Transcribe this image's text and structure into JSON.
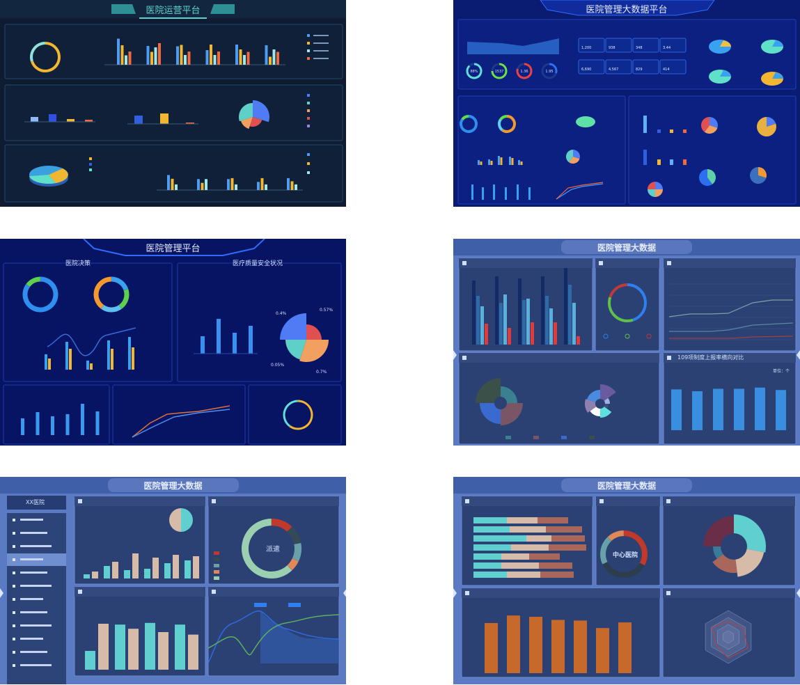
{
  "thumbnails": [
    {
      "title": "医院运营平台",
      "staff_bars": {
        "ymax": 800,
        "ticks": [
          "800",
          "600",
          "400",
          "200",
          "0"
        ],
        "groups": [
          [
            750,
            560,
            270,
            380
          ],
          [
            540,
            370,
            500,
            620
          ],
          [
            530,
            570,
            280,
            380
          ],
          [
            420,
            580,
            280,
            380
          ],
          [
            580,
            440,
            280,
            370
          ],
          [
            560,
            230,
            440,
            370
          ]
        ],
        "colors": [
          "#4f9cf5",
          "#f2b630",
          "#9fe8e6",
          "#f06a3c"
        ]
      },
      "ring_colors": [
        "#f2b630",
        "#8fe3de"
      ],
      "expense_bars": [
        7,
        11,
        4,
        3
      ],
      "income_bars": [
        12,
        15,
        2
      ],
      "pie_colors": [
        "#4f7cf5",
        "#5fd0c8",
        "#f2a060",
        "#e05050",
        "#a080e0"
      ],
      "drug_bars": {
        "ymax": 800,
        "groups": [
          [
            480,
            360,
            180
          ],
          [
            350,
            230,
            350
          ],
          [
            350,
            380,
            180
          ],
          [
            260,
            380,
            180
          ],
          [
            380,
            280,
            180
          ]
        ],
        "colors": [
          "#4f9cf5",
          "#f2b630",
          "#9fe8e6"
        ]
      }
    },
    {
      "title": "医院管理大数据平台",
      "gauges": [
        {
          "value": "88%",
          "color": "#5fe0d8",
          "fill": 0.88
        },
        {
          "value": "1537",
          "color": "#6ee04a",
          "fill": 0.75
        },
        {
          "value": "1.36",
          "color": "#f04040",
          "fill": 0.8
        },
        {
          "value": "1.95",
          "color": "#2e6ff0",
          "fill": 0.3
        }
      ],
      "kpis": [
        "1,200",
        "938",
        "348",
        "3.44",
        "6,690",
        "4,567",
        "829",
        "414"
      ]
    },
    {
      "title": "医院管理平台",
      "section_left": "医院决策",
      "section_right": "医疗质量安全状况",
      "visit_bars": {
        "blue": [
          22,
          40,
          13,
          42,
          47
        ],
        "yellow": [
          16,
          30,
          9,
          30,
          32
        ]
      },
      "quality_bars": [
        25,
        50,
        30,
        40
      ],
      "pie_labels": [
        "0.4%",
        "0.57%",
        "0.7%",
        "0.05%"
      ],
      "bottom_bars": [
        24,
        33,
        27,
        30,
        45,
        34
      ]
    },
    {
      "title": "医院管理大数据",
      "panel5_title": "109项制度上报率横向对比",
      "unit_label": "单位：个",
      "compare_bars": [
        [
          92,
          70,
          55,
          30
        ],
        [
          98,
          60,
          72,
          24
        ],
        [
          95,
          64,
          66,
          32
        ],
        [
          98,
          70,
          52,
          32
        ],
        [
          110,
          86,
          60,
          12
        ]
      ],
      "report_bars": [
        107,
        104,
        108,
        108,
        110,
        106
      ]
    },
    {
      "title": "医院管理大数据",
      "sidebar_header": "XX医院",
      "sidebar_items": 12,
      "sidebar_active_index": 3,
      "donut_center": "派遣",
      "staff_bars": [
        [
          3,
          5
        ],
        [
          9,
          12
        ],
        [
          6,
          18
        ],
        [
          7,
          15
        ],
        [
          11,
          17
        ],
        [
          13,
          16
        ]
      ],
      "cadre_bars": [
        [
          45,
          110
        ],
        [
          108,
          98
        ],
        [
          112,
          90
        ],
        [
          108,
          84
        ]
      ]
    },
    {
      "title": "医院管理大数据",
      "donut_center": "中心医院",
      "stacked_rows": [
        [
          48,
          44,
          44
        ],
        [
          52,
          52,
          52
        ],
        [
          76,
          36,
          48
        ],
        [
          54,
          54,
          54
        ],
        [
          40,
          40,
          44
        ],
        [
          40,
          54,
          48
        ],
        [
          48,
          48,
          48
        ]
      ],
      "orange_bars": [
        80,
        92,
        90,
        85,
        84,
        72,
        81
      ]
    }
  ]
}
